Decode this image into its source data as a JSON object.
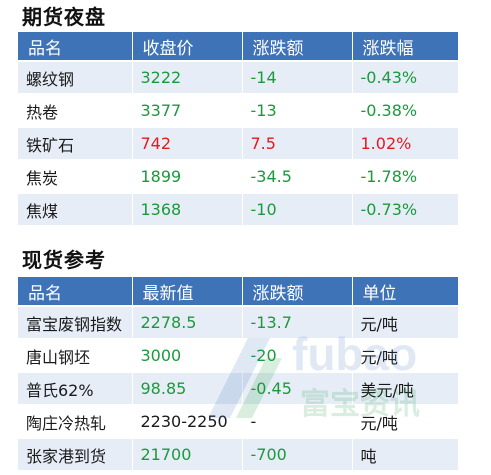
{
  "futures": {
    "title": "期货夜盘",
    "headers": [
      "品名",
      "收盘价",
      "涨跌额",
      "涨跌幅"
    ],
    "rows": [
      {
        "name": "螺纹钢",
        "close": "3222",
        "change": "-14",
        "pct": "-0.43%",
        "trend": "down"
      },
      {
        "name": "热卷",
        "close": "3377",
        "change": "-13",
        "pct": "-0.38%",
        "trend": "down"
      },
      {
        "name": "铁矿石",
        "close": "742",
        "change": "7.5",
        "pct": "1.02%",
        "trend": "up"
      },
      {
        "name": "焦炭",
        "close": "1899",
        "change": "-34.5",
        "pct": "-1.78%",
        "trend": "down"
      },
      {
        "name": "焦煤",
        "close": "1368",
        "change": "-10",
        "pct": "-0.73%",
        "trend": "down"
      }
    ]
  },
  "spot": {
    "title": "现货参考",
    "headers": [
      "品名",
      "最新值",
      "涨跌额",
      "单位"
    ],
    "rows": [
      {
        "name": "富宝废钢指数",
        "value": "2278.5",
        "change": "-13.7",
        "unit": "元/吨",
        "trend": "down"
      },
      {
        "name": "唐山钢坯",
        "value": "3000",
        "change": "-20",
        "unit": "元/吨",
        "trend": "down"
      },
      {
        "name": "普氏62%",
        "value": "98.85",
        "change": "-0.45",
        "unit": "美元/吨",
        "trend": "down"
      },
      {
        "name": "陶庄冷热轧",
        "value": "2230-2250",
        "change": "-",
        "unit": "元/吨",
        "trend": "neutral"
      },
      {
        "name": "张家港到货",
        "value": "21700",
        "change": "-700",
        "unit": "吨",
        "trend": "down"
      }
    ]
  },
  "colors": {
    "header_bg": "#3f73b8",
    "row_alt_bg": "#e6edf7",
    "up": "#e21b1b",
    "down": "#1b9a3c"
  },
  "watermark": {
    "latin": "fubao",
    "cn": "富宝资讯"
  }
}
